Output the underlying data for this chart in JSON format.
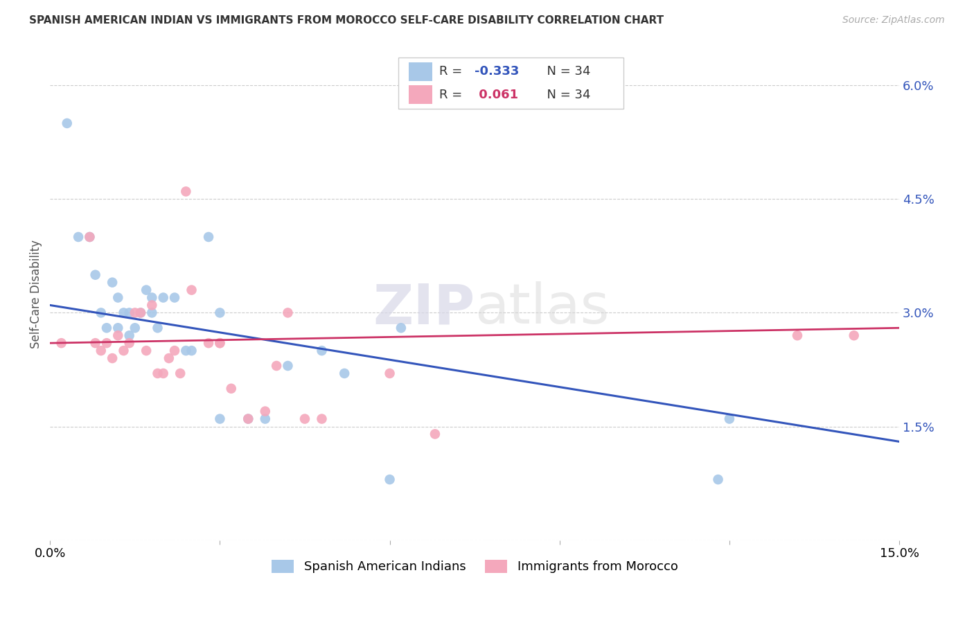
{
  "title": "SPANISH AMERICAN INDIAN VS IMMIGRANTS FROM MOROCCO SELF-CARE DISABILITY CORRELATION CHART",
  "source": "Source: ZipAtlas.com",
  "ylabel": "Self-Care Disability",
  "xlim": [
    0.0,
    0.15
  ],
  "ylim": [
    0.0,
    0.065
  ],
  "xticks": [
    0.0,
    0.03,
    0.06,
    0.09,
    0.12,
    0.15
  ],
  "xticklabels": [
    "0.0%",
    "",
    "",
    "",
    "",
    "15.0%"
  ],
  "yticks_right": [
    0.0,
    0.015,
    0.03,
    0.045,
    0.06
  ],
  "yticklabels_right": [
    "",
    "1.5%",
    "3.0%",
    "4.5%",
    "6.0%"
  ],
  "grid_color": "#cccccc",
  "background_color": "#ffffff",
  "watermark": "ZIPatlas",
  "blue_R": -0.333,
  "blue_N": 34,
  "pink_R": 0.061,
  "pink_N": 34,
  "blue_color": "#a8c8e8",
  "pink_color": "#f4a8bc",
  "blue_line_color": "#3355bb",
  "pink_line_color": "#cc3366",
  "legend_label_blue": "Spanish American Indians",
  "legend_label_pink": "Immigrants from Morocco",
  "blue_line_y0": 0.031,
  "blue_line_y1": 0.013,
  "pink_line_y0": 0.026,
  "pink_line_y1": 0.028,
  "blue_x": [
    0.003,
    0.005,
    0.007,
    0.008,
    0.009,
    0.01,
    0.011,
    0.012,
    0.012,
    0.013,
    0.014,
    0.014,
    0.015,
    0.016,
    0.017,
    0.018,
    0.018,
    0.019,
    0.02,
    0.022,
    0.024,
    0.025,
    0.028,
    0.03,
    0.03,
    0.035,
    0.038,
    0.042,
    0.048,
    0.052,
    0.06,
    0.062,
    0.118,
    0.12
  ],
  "blue_y": [
    0.055,
    0.04,
    0.04,
    0.035,
    0.03,
    0.028,
    0.034,
    0.028,
    0.032,
    0.03,
    0.027,
    0.03,
    0.028,
    0.03,
    0.033,
    0.03,
    0.032,
    0.028,
    0.032,
    0.032,
    0.025,
    0.025,
    0.04,
    0.03,
    0.016,
    0.016,
    0.016,
    0.023,
    0.025,
    0.022,
    0.008,
    0.028,
    0.008,
    0.016
  ],
  "pink_x": [
    0.002,
    0.007,
    0.008,
    0.009,
    0.01,
    0.011,
    0.012,
    0.013,
    0.014,
    0.015,
    0.016,
    0.017,
    0.018,
    0.019,
    0.02,
    0.021,
    0.022,
    0.023,
    0.024,
    0.025,
    0.028,
    0.03,
    0.03,
    0.032,
    0.035,
    0.038,
    0.04,
    0.042,
    0.045,
    0.048,
    0.06,
    0.068,
    0.132,
    0.142
  ],
  "pink_y": [
    0.026,
    0.04,
    0.026,
    0.025,
    0.026,
    0.024,
    0.027,
    0.025,
    0.026,
    0.03,
    0.03,
    0.025,
    0.031,
    0.022,
    0.022,
    0.024,
    0.025,
    0.022,
    0.046,
    0.033,
    0.026,
    0.026,
    0.026,
    0.02,
    0.016,
    0.017,
    0.023,
    0.03,
    0.016,
    0.016,
    0.022,
    0.014,
    0.027,
    0.027
  ]
}
